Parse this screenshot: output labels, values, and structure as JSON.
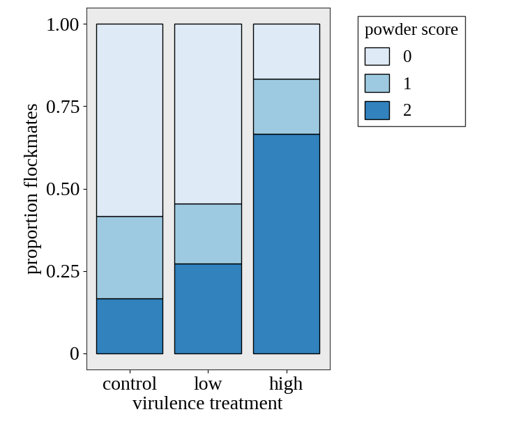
{
  "chart_data": {
    "type": "bar",
    "stacked": true,
    "xlabel": "virulence treatment",
    "ylabel": "proportion flockmates",
    "categories": [
      "control",
      "low",
      "high"
    ],
    "series": [
      {
        "name": "0",
        "color": "#deebf7",
        "values": [
          0.583,
          0.545,
          0.167
        ]
      },
      {
        "name": "1",
        "color": "#9ecae1",
        "values": [
          0.25,
          0.182,
          0.167
        ]
      },
      {
        "name": "2",
        "color": "#3182bd",
        "values": [
          0.167,
          0.273,
          0.667
        ]
      }
    ],
    "legend_title": "powder score",
    "legend": "upper left",
    "ylim": [
      -0.05,
      1.05
    ],
    "yticks": [
      0,
      0.25,
      {
        "value": 0.5,
        "label": "0.50"
      },
      0.75,
      {
        "value": 1.0,
        "label": "1.00"
      }
    ],
    "grid": false
  }
}
